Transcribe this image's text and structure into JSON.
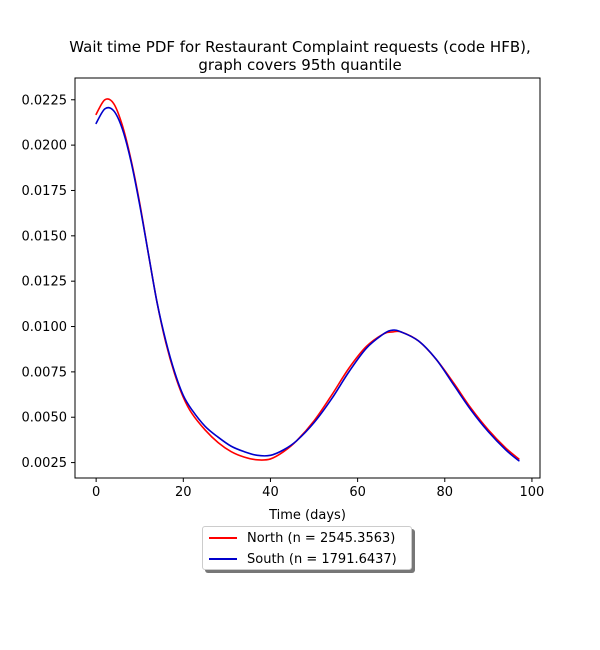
{
  "chart_data": {
    "type": "line",
    "title": "Wait time PDF for Restaurant Complaint  requests (code HFB),",
    "subtitle": "graph covers 95th quantile",
    "xlabel": "Time (days)",
    "ylabel": "",
    "xlim": [
      -4.85,
      101.85
    ],
    "ylim": [
      0.00165,
      0.0237
    ],
    "x_ticks": [
      0,
      20,
      40,
      60,
      80,
      100
    ],
    "x_tick_labels": [
      "0",
      "20",
      "40",
      "60",
      "80",
      "100"
    ],
    "y_ticks": [
      0.0025,
      0.005,
      0.0075,
      0.01,
      0.0125,
      0.015,
      0.0175,
      0.02,
      0.0225
    ],
    "y_tick_labels": [
      "0.0025",
      "0.0050",
      "0.0075",
      "0.0100",
      "0.0125",
      "0.0150",
      "0.0175",
      "0.0200",
      "0.0225"
    ],
    "grid": false,
    "legend_position": "below",
    "x": [
      0,
      2,
      4,
      6,
      8,
      10,
      12,
      14,
      16,
      18,
      20,
      22,
      25,
      28,
      31,
      34,
      37,
      40,
      43,
      46,
      50,
      54,
      58,
      62,
      66,
      68,
      70,
      74,
      78,
      82,
      86,
      90,
      94,
      97
    ],
    "series": [
      {
        "name": "North (n = 2545.3563)",
        "color": "#ff0000",
        "values": [
          0.0217,
          0.0225,
          0.0223,
          0.0211,
          0.0192,
          0.0168,
          0.014,
          0.0113,
          0.0091,
          0.0074,
          0.0061,
          0.0052,
          0.0043,
          0.0036,
          0.0031,
          0.0028,
          0.00265,
          0.0027,
          0.0031,
          0.0037,
          0.0048,
          0.0062,
          0.0077,
          0.0089,
          0.0096,
          0.0097,
          0.0097,
          0.0092,
          0.0082,
          0.0069,
          0.0055,
          0.0043,
          0.0033,
          0.0027
        ]
      },
      {
        "name": "South (n = 1791.6437)",
        "color": "#0000cc",
        "values": [
          0.0212,
          0.022,
          0.0219,
          0.0209,
          0.0191,
          0.0167,
          0.014,
          0.0113,
          0.0092,
          0.0075,
          0.0062,
          0.0054,
          0.0045,
          0.0039,
          0.0034,
          0.0031,
          0.0029,
          0.0029,
          0.0032,
          0.0037,
          0.0047,
          0.006,
          0.0075,
          0.0088,
          0.0096,
          0.0098,
          0.0097,
          0.0092,
          0.0082,
          0.0068,
          0.0054,
          0.0042,
          0.0032,
          0.0026
        ]
      }
    ]
  }
}
